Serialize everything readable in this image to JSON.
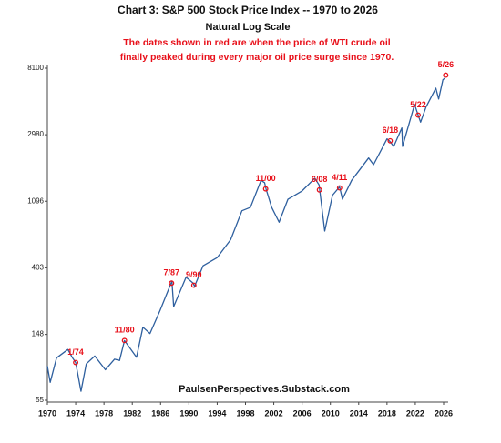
{
  "chart_data": {
    "type": "line",
    "title": "Chart 3: S&P 500 Stock Price Index -- 1970 to 2026",
    "subtitle": "Natural Log Scale",
    "note": [
      "The dates shown in red are when the price of WTI crude oil",
      "finally peaked during every major oil price surge since 1970."
    ],
    "source": "PaulsenPerspectives.Substack.com",
    "log_scale": true,
    "grid": false,
    "color": "#2e5f9e",
    "annotation_color": "#e8101a",
    "x": [
      1970.0,
      1970.4,
      1971.3,
      1972.9,
      1973.5,
      1974.0,
      1974.75,
      1975.5,
      1976.7,
      1978.2,
      1979.5,
      1980.2,
      1980.9,
      1982.6,
      1983.5,
      1984.5,
      1985.9,
      1987.6,
      1987.85,
      1989.6,
      1990.6,
      1990.8,
      1992.0,
      1994.0,
      1995.9,
      1997.5,
      1998.7,
      2000.2,
      2000.7,
      2000.9,
      2001.7,
      2002.75,
      2004.0,
      2006.0,
      2007.8,
      2008.4,
      2009.2,
      2010.3,
      2011.3,
      2011.7,
      2013.0,
      2015.4,
      2016.1,
      2018.0,
      2018.4,
      2018.95,
      2020.1,
      2020.2,
      2021.9,
      2022.4,
      2022.75,
      2023.5,
      2024.9,
      2025.3,
      2025.9,
      2026.2
    ],
    "values": [
      92,
      72,
      104,
      118,
      105,
      97,
      63,
      95,
      107,
      87,
      102,
      100,
      135,
      105,
      165,
      150,
      211,
      330,
      225,
      350,
      320,
      305,
      415,
      470,
      615,
      950,
      1000,
      1500,
      1450,
      1320,
      1000,
      800,
      1130,
      1280,
      1550,
      1400,
      700,
      1200,
      1360,
      1130,
      1500,
      2100,
      1900,
      2800,
      2700,
      2500,
      3300,
      2500,
      4700,
      4000,
      3600,
      4500,
      6000,
      5100,
      6800,
      7000
    ],
    "annotations": [
      {
        "label": "1/74",
        "x": 1974.0,
        "y": 97
      },
      {
        "label": "11/80",
        "x": 1980.9,
        "y": 135
      },
      {
        "label": "7/87",
        "x": 1987.55,
        "y": 320
      },
      {
        "label": "9/90",
        "x": 1990.7,
        "y": 310
      },
      {
        "label": "11/00",
        "x": 2000.85,
        "y": 1320
      },
      {
        "label": "6/08",
        "x": 2008.45,
        "y": 1300
      },
      {
        "label": "4/11",
        "x": 2011.3,
        "y": 1340
      },
      {
        "label": "6/18",
        "x": 2018.45,
        "y": 2720
      },
      {
        "label": "5/22",
        "x": 2022.4,
        "y": 4000
      },
      {
        "label": "5/26",
        "x": 2026.3,
        "y": 7300
      }
    ],
    "xlim": [
      1970,
      2026
    ],
    "xticks": [
      1970,
      1974,
      1978,
      1982,
      1986,
      1990,
      1994,
      1998,
      2002,
      2006,
      2010,
      2014,
      2018,
      2022,
      2026
    ],
    "ylim": [
      55,
      8100
    ],
    "yticks": [
      55,
      148,
      403,
      1096,
      2980,
      8100
    ]
  }
}
